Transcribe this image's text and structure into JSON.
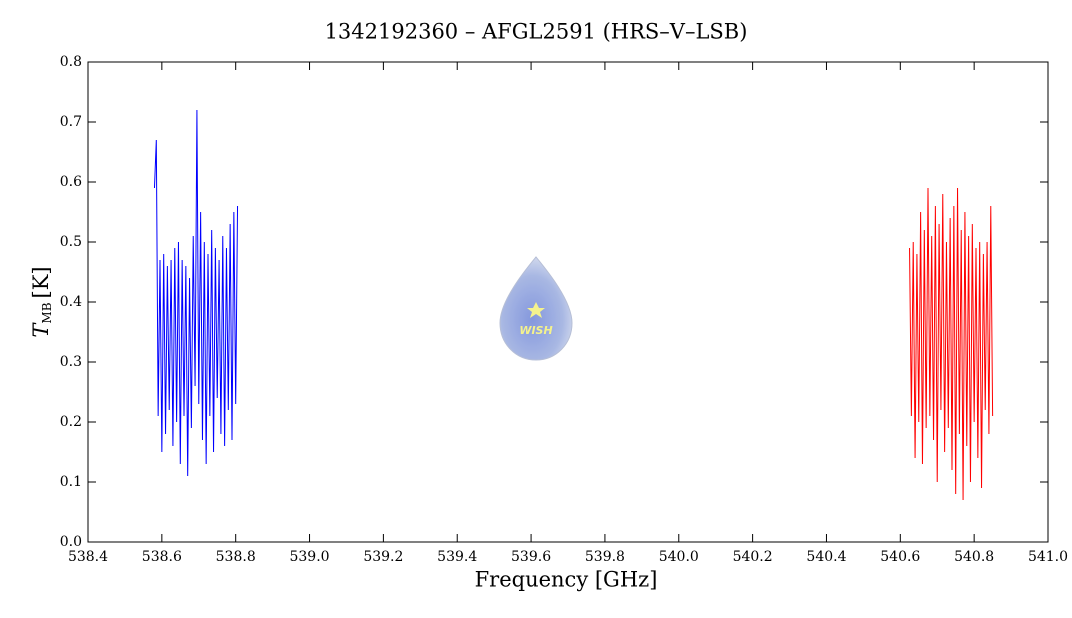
{
  "chart_data": {
    "type": "line",
    "title": "1342192360 – AFGL2591 (HRS–V–LSB)",
    "x_label": "Frequency [GHz]",
    "y_label": {
      "symbol": "T",
      "subscript": "MB",
      "unit": "[K]"
    },
    "logo_text": "WISH",
    "xlim": [
      538.4,
      541.0
    ],
    "xticks": [
      538.4,
      538.6,
      538.8,
      {
        "value": 539,
        "label": "539.0"
      },
      539.2,
      539.4,
      539.6,
      539.8,
      {
        "value": 540,
        "label": "540.0"
      },
      540.2,
      540.4,
      540.6,
      540.8,
      {
        "value": 541,
        "label": "541.0"
      }
    ],
    "ylim": [
      0,
      0.8
    ],
    "yticks": [
      {
        "value": 0,
        "label": "0.0"
      },
      0.1,
      0.2,
      0.3,
      0.4,
      0.5,
      0.6,
      0.7,
      0.8
    ],
    "grid": false,
    "series": [
      {
        "color": "#0000ff",
        "x": [
          538.58,
          538.585,
          538.59,
          538.595,
          538.6,
          538.605,
          538.61,
          538.615,
          538.62,
          538.625,
          538.63,
          538.635,
          538.64,
          538.645,
          538.65,
          538.655,
          538.66,
          538.665,
          538.67,
          538.675,
          538.68,
          538.685,
          538.69,
          538.695,
          538.7,
          538.705,
          538.71,
          538.715,
          538.72,
          538.725,
          538.73,
          538.735,
          538.74,
          538.745,
          538.75,
          538.755,
          538.76,
          538.765,
          538.77,
          538.775,
          538.78,
          538.785,
          538.79,
          538.795,
          538.8,
          538.805
        ],
        "values": [
          0.59,
          0.67,
          0.21,
          0.47,
          0.15,
          0.48,
          0.18,
          0.46,
          0.22,
          0.47,
          0.16,
          0.49,
          0.2,
          0.5,
          0.13,
          0.47,
          0.21,
          0.46,
          0.11,
          0.44,
          0.19,
          0.51,
          0.26,
          0.72,
          0.23,
          0.55,
          0.17,
          0.5,
          0.13,
          0.48,
          0.21,
          0.52,
          0.15,
          0.49,
          0.24,
          0.47,
          0.18,
          0.51,
          0.16,
          0.49,
          0.22,
          0.53,
          0.17,
          0.55,
          0.23,
          0.56
        ]
      },
      {
        "color": "#ff0000",
        "x": [
          540.625,
          540.63,
          540.635,
          540.64,
          540.645,
          540.65,
          540.655,
          540.66,
          540.665,
          540.67,
          540.675,
          540.68,
          540.685,
          540.69,
          540.695,
          540.7,
          540.705,
          540.71,
          540.715,
          540.72,
          540.725,
          540.73,
          540.735,
          540.74,
          540.745,
          540.75,
          540.755,
          540.76,
          540.765,
          540.77,
          540.775,
          540.78,
          540.785,
          540.79,
          540.795,
          540.8,
          540.805,
          540.81,
          540.815,
          540.82,
          540.825,
          540.83,
          540.835,
          540.84,
          540.845,
          540.85
        ],
        "values": [
          0.49,
          0.21,
          0.5,
          0.14,
          0.48,
          0.2,
          0.55,
          0.13,
          0.52,
          0.19,
          0.59,
          0.21,
          0.51,
          0.17,
          0.56,
          0.1,
          0.53,
          0.22,
          0.58,
          0.15,
          0.5,
          0.19,
          0.54,
          0.12,
          0.56,
          0.08,
          0.59,
          0.18,
          0.52,
          0.07,
          0.55,
          0.16,
          0.51,
          0.1,
          0.53,
          0.2,
          0.49,
          0.14,
          0.5,
          0.09,
          0.48,
          0.22,
          0.5,
          0.18,
          0.56,
          0.21
        ]
      }
    ]
  }
}
